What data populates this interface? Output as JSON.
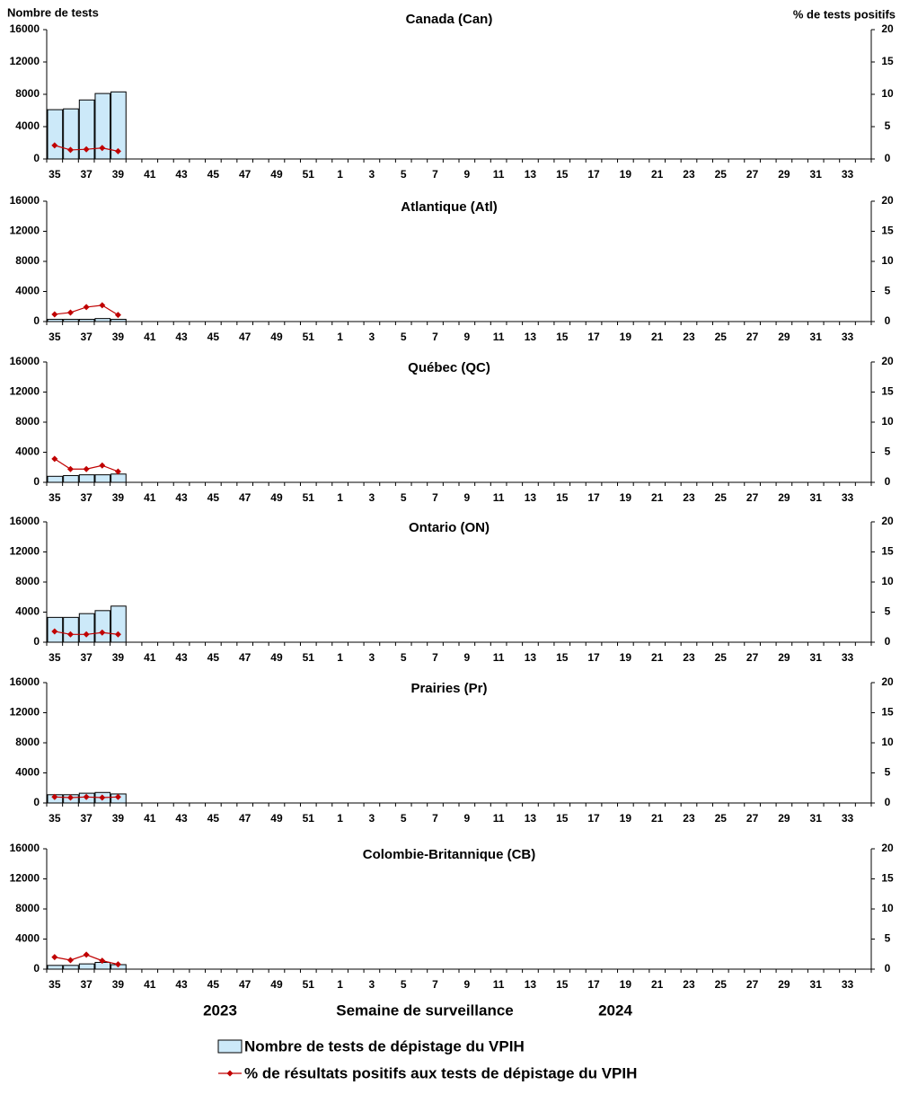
{
  "chart_data": [
    {
      "type": "bar_line",
      "title": "Canada (Can)",
      "y_label": "Nombre de tests",
      "y2_label": "% de tests positifs",
      "categories": [
        "35",
        null,
        "37",
        null,
        "39",
        null,
        "41",
        null,
        "43",
        null,
        "45",
        null,
        "47",
        null,
        "49",
        null,
        "51",
        null,
        "1",
        null,
        "3",
        null,
        "5",
        null,
        "7",
        null,
        "9",
        null,
        "11",
        null,
        "13",
        null,
        "15",
        null,
        "17",
        null,
        "19",
        null,
        "21",
        null,
        "23",
        null,
        "25",
        null,
        "27",
        null,
        "29",
        null,
        "31",
        null,
        "33",
        null
      ],
      "ylim": [
        0,
        16000
      ],
      "yticks": [
        0,
        4000,
        8000,
        12000,
        16000
      ],
      "y2lim": [
        0,
        20
      ],
      "y2ticks": [
        0,
        5,
        10,
        15,
        20
      ],
      "series": [
        {
          "name": "Nombre de tests de dépistage du VPIH",
          "color": "#cce9f9",
          "values": [
            6100,
            6200,
            7300,
            8100,
            8300,
            null,
            null,
            null,
            null,
            null,
            null,
            null,
            null,
            null,
            null,
            null,
            null,
            null,
            null,
            null,
            null,
            null,
            null,
            null,
            null,
            null,
            null,
            null,
            null,
            null,
            null,
            null,
            null,
            null,
            null,
            null,
            null,
            null,
            null,
            null,
            null,
            null,
            null,
            null,
            null,
            null,
            null,
            null,
            null,
            null,
            null,
            null
          ]
        },
        {
          "name": "% de résultats positifs aux tests de dépistage du VPIH",
          "color": "#c00000",
          "axis": "y2",
          "values": [
            2.1,
            1.4,
            1.5,
            1.7,
            1.2,
            null,
            null,
            null,
            null,
            null,
            null,
            null,
            null,
            null,
            null,
            null,
            null,
            null,
            null,
            null,
            null,
            null,
            null,
            null,
            null,
            null,
            null,
            null,
            null,
            null,
            null,
            null,
            null,
            null,
            null,
            null,
            null,
            null,
            null,
            null,
            null,
            null,
            null,
            null,
            null,
            null,
            null,
            null,
            null,
            null,
            null,
            null
          ]
        }
      ]
    },
    {
      "type": "bar_line",
      "title": "Atlantique (Atl)",
      "categories": [
        "35",
        null,
        "37",
        null,
        "39",
        null,
        "41",
        null,
        "43",
        null,
        "45",
        null,
        "47",
        null,
        "49",
        null,
        "51",
        null,
        "1",
        null,
        "3",
        null,
        "5",
        null,
        "7",
        null,
        "9",
        null,
        "11",
        null,
        "13",
        null,
        "15",
        null,
        "17",
        null,
        "19",
        null,
        "21",
        null,
        "23",
        null,
        "25",
        null,
        "27",
        null,
        "29",
        null,
        "31",
        null,
        "33",
        null
      ],
      "ylim": [
        0,
        16000
      ],
      "yticks": [
        0,
        4000,
        8000,
        12000,
        16000
      ],
      "y2lim": [
        0,
        20
      ],
      "y2ticks": [
        0,
        5,
        10,
        15,
        20
      ],
      "series": [
        {
          "color": "#cce9f9",
          "values": [
            300,
            300,
            300,
            400,
            300,
            null,
            null,
            null,
            null,
            null,
            null,
            null,
            null,
            null,
            null,
            null,
            null,
            null,
            null,
            null,
            null,
            null,
            null,
            null,
            null,
            null,
            null,
            null,
            null,
            null,
            null,
            null,
            null,
            null,
            null,
            null,
            null,
            null,
            null,
            null,
            null,
            null,
            null,
            null,
            null,
            null,
            null,
            null,
            null,
            null,
            null,
            null
          ]
        },
        {
          "color": "#c00000",
          "axis": "y2",
          "values": [
            1.2,
            1.5,
            2.4,
            2.7,
            1.1,
            null,
            null,
            null,
            null,
            null,
            null,
            null,
            null,
            null,
            null,
            null,
            null,
            null,
            null,
            null,
            null,
            null,
            null,
            null,
            null,
            null,
            null,
            null,
            null,
            null,
            null,
            null,
            null,
            null,
            null,
            null,
            null,
            null,
            null,
            null,
            null,
            null,
            null,
            null,
            null,
            null,
            null,
            null,
            null,
            null,
            null,
            null
          ]
        }
      ]
    },
    {
      "type": "bar_line",
      "title": "Québec (QC)",
      "categories": [
        "35",
        null,
        "37",
        null,
        "39",
        null,
        "41",
        null,
        "43",
        null,
        "45",
        null,
        "47",
        null,
        "49",
        null,
        "51",
        null,
        "1",
        null,
        "3",
        null,
        "5",
        null,
        "7",
        null,
        "9",
        null,
        "11",
        null,
        "13",
        null,
        "15",
        null,
        "17",
        null,
        "19",
        null,
        "21",
        null,
        "23",
        null,
        "25",
        null,
        "27",
        null,
        "29",
        null,
        "31",
        null,
        "33",
        null
      ],
      "ylim": [
        0,
        16000
      ],
      "yticks": [
        0,
        4000,
        8000,
        12000,
        16000
      ],
      "y2lim": [
        0,
        20
      ],
      "y2ticks": [
        0,
        5,
        10,
        15,
        20
      ],
      "series": [
        {
          "color": "#cce9f9",
          "values": [
            800,
            900,
            1000,
            1000,
            1100,
            null,
            null,
            null,
            null,
            null,
            null,
            null,
            null,
            null,
            null,
            null,
            null,
            null,
            null,
            null,
            null,
            null,
            null,
            null,
            null,
            null,
            null,
            null,
            null,
            null,
            null,
            null,
            null,
            null,
            null,
            null,
            null,
            null,
            null,
            null,
            null,
            null,
            null,
            null,
            null,
            null,
            null,
            null,
            null,
            null,
            null,
            null
          ]
        },
        {
          "color": "#c00000",
          "axis": "y2",
          "values": [
            3.9,
            2.2,
            2.2,
            2.8,
            1.8,
            null,
            null,
            null,
            null,
            null,
            null,
            null,
            null,
            null,
            null,
            null,
            null,
            null,
            null,
            null,
            null,
            null,
            null,
            null,
            null,
            null,
            null,
            null,
            null,
            null,
            null,
            null,
            null,
            null,
            null,
            null,
            null,
            null,
            null,
            null,
            null,
            null,
            null,
            null,
            null,
            null,
            null,
            null,
            null,
            null,
            null,
            null
          ]
        }
      ]
    },
    {
      "type": "bar_line",
      "title": "Ontario (ON)",
      "categories": [
        "35",
        null,
        "37",
        null,
        "39",
        null,
        "41",
        null,
        "43",
        null,
        "45",
        null,
        "47",
        null,
        "49",
        null,
        "51",
        null,
        "1",
        null,
        "3",
        null,
        "5",
        null,
        "7",
        null,
        "9",
        null,
        "11",
        null,
        "13",
        null,
        "15",
        null,
        "17",
        null,
        "19",
        null,
        "21",
        null,
        "23",
        null,
        "25",
        null,
        "27",
        null,
        "29",
        null,
        "31",
        null,
        "33",
        null
      ],
      "ylim": [
        0,
        16000
      ],
      "yticks": [
        0,
        4000,
        8000,
        12000,
        16000
      ],
      "y2lim": [
        0,
        20
      ],
      "y2ticks": [
        0,
        5,
        10,
        15,
        20
      ],
      "series": [
        {
          "color": "#cce9f9",
          "values": [
            3300,
            3300,
            3800,
            4200,
            4800,
            null,
            null,
            null,
            null,
            null,
            null,
            null,
            null,
            null,
            null,
            null,
            null,
            null,
            null,
            null,
            null,
            null,
            null,
            null,
            null,
            null,
            null,
            null,
            null,
            null,
            null,
            null,
            null,
            null,
            null,
            null,
            null,
            null,
            null,
            null,
            null,
            null,
            null,
            null,
            null,
            null,
            null,
            null,
            null,
            null,
            null,
            null
          ]
        },
        {
          "color": "#c00000",
          "axis": "y2",
          "values": [
            1.8,
            1.3,
            1.3,
            1.6,
            1.3,
            null,
            null,
            null,
            null,
            null,
            null,
            null,
            null,
            null,
            null,
            null,
            null,
            null,
            null,
            null,
            null,
            null,
            null,
            null,
            null,
            null,
            null,
            null,
            null,
            null,
            null,
            null,
            null,
            null,
            null,
            null,
            null,
            null,
            null,
            null,
            null,
            null,
            null,
            null,
            null,
            null,
            null,
            null,
            null,
            null,
            null,
            null
          ]
        }
      ]
    },
    {
      "type": "bar_line",
      "title": "Prairies (Pr)",
      "categories": [
        "35",
        null,
        "37",
        null,
        "39",
        null,
        "41",
        null,
        "43",
        null,
        "45",
        null,
        "47",
        null,
        "49",
        null,
        "51",
        null,
        "1",
        null,
        "3",
        null,
        "5",
        null,
        "7",
        null,
        "9",
        null,
        "11",
        null,
        "13",
        null,
        "15",
        null,
        "17",
        null,
        "19",
        null,
        "21",
        null,
        "23",
        null,
        "25",
        null,
        "27",
        null,
        "29",
        null,
        "31",
        null,
        "33",
        null
      ],
      "ylim": [
        0,
        16000
      ],
      "yticks": [
        0,
        4000,
        8000,
        12000,
        16000
      ],
      "y2lim": [
        0,
        20
      ],
      "y2ticks": [
        0,
        5,
        10,
        15,
        20
      ],
      "series": [
        {
          "color": "#cce9f9",
          "values": [
            1100,
            1100,
            1300,
            1400,
            1200,
            null,
            null,
            null,
            null,
            null,
            null,
            null,
            null,
            null,
            null,
            null,
            null,
            null,
            null,
            null,
            null,
            null,
            null,
            null,
            null,
            null,
            null,
            null,
            null,
            null,
            null,
            null,
            null,
            null,
            null,
            null,
            null,
            null,
            null,
            null,
            null,
            null,
            null,
            null,
            null,
            null,
            null,
            null,
            null,
            null,
            null,
            null
          ]
        },
        {
          "color": "#c00000",
          "axis": "y2",
          "values": [
            1.0,
            0.9,
            1.0,
            0.9,
            1.0,
            null,
            null,
            null,
            null,
            null,
            null,
            null,
            null,
            null,
            null,
            null,
            null,
            null,
            null,
            null,
            null,
            null,
            null,
            null,
            null,
            null,
            null,
            null,
            null,
            null,
            null,
            null,
            null,
            null,
            null,
            null,
            null,
            null,
            null,
            null,
            null,
            null,
            null,
            null,
            null,
            null,
            null,
            null,
            null,
            null,
            null,
            null
          ]
        }
      ]
    },
    {
      "type": "bar_line",
      "title": "Colombie-Britannique (CB)",
      "categories": [
        "35",
        null,
        "37",
        null,
        "39",
        null,
        "41",
        null,
        "43",
        null,
        "45",
        null,
        "47",
        null,
        "49",
        null,
        "51",
        null,
        "1",
        null,
        "3",
        null,
        "5",
        null,
        "7",
        null,
        "9",
        null,
        "11",
        null,
        "13",
        null,
        "15",
        null,
        "17",
        null,
        "19",
        null,
        "21",
        null,
        "23",
        null,
        "25",
        null,
        "27",
        null,
        "29",
        null,
        "31",
        null,
        "33",
        null
      ],
      "ylim": [
        0,
        16000
      ],
      "yticks": [
        0,
        4000,
        8000,
        12000,
        16000
      ],
      "y2lim": [
        0,
        20
      ],
      "y2ticks": [
        0,
        5,
        10,
        15,
        20
      ],
      "series": [
        {
          "color": "#cce9f9",
          "values": [
            500,
            500,
            700,
            900,
            600,
            null,
            null,
            null,
            null,
            null,
            null,
            null,
            null,
            null,
            null,
            null,
            null,
            null,
            null,
            null,
            null,
            null,
            null,
            null,
            null,
            null,
            null,
            null,
            null,
            null,
            null,
            null,
            null,
            null,
            null,
            null,
            null,
            null,
            null,
            null,
            null,
            null,
            null,
            null,
            null,
            null,
            null,
            null,
            null,
            null,
            null,
            null
          ]
        },
        {
          "color": "#c00000",
          "axis": "y2",
          "values": [
            2.0,
            1.5,
            2.4,
            1.4,
            0.8,
            null,
            null,
            null,
            null,
            null,
            null,
            null,
            null,
            null,
            null,
            null,
            null,
            null,
            null,
            null,
            null,
            null,
            null,
            null,
            null,
            null,
            null,
            null,
            null,
            null,
            null,
            null,
            null,
            null,
            null,
            null,
            null,
            null,
            null,
            null,
            null,
            null,
            null,
            null,
            null,
            null,
            null,
            null,
            null,
            null,
            null,
            null
          ]
        }
      ]
    }
  ],
  "footer": {
    "x_label": "Semaine de surveillance",
    "year_labels": [
      "2023",
      "2024"
    ]
  }
}
